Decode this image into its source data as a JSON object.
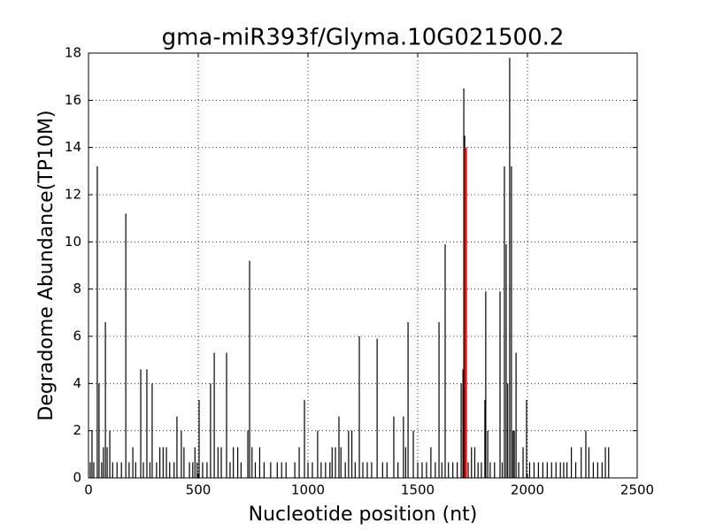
{
  "chart_data": {
    "type": "stem",
    "title": "gma-miR393f/Glyma.10G021500.2",
    "x_label": "Nucleotide position (nt)",
    "y_label": "Degradome Abundance(TP10M)",
    "xlim": [
      0,
      2500
    ],
    "xticks": [
      0,
      500,
      1000,
      1500,
      2000,
      2500
    ],
    "ylim": [
      0,
      18
    ],
    "yticks": [
      0,
      2,
      4,
      6,
      8,
      10,
      12,
      14,
      16,
      18
    ],
    "grid": true,
    "color": "#000000",
    "x": [
      8,
      16,
      24,
      40,
      48,
      60,
      68,
      77,
      85,
      97,
      110,
      130,
      150,
      170,
      185,
      202,
      215,
      238,
      250,
      266,
      280,
      290,
      310,
      325,
      340,
      355,
      370,
      390,
      403,
      423,
      435,
      460,
      475,
      485,
      495,
      504,
      520,
      540,
      556,
      573,
      590,
      605,
      629,
      645,
      660,
      680,
      695,
      726,
      734,
      745,
      760,
      780,
      800,
      830,
      860,
      880,
      900,
      940,
      960,
      984,
      1000,
      1020,
      1044,
      1060,
      1080,
      1100,
      1110,
      1125,
      1141,
      1150,
      1170,
      1185,
      1200,
      1215,
      1234,
      1250,
      1270,
      1290,
      1315,
      1340,
      1360,
      1391,
      1410,
      1435,
      1445,
      1456,
      1480,
      1500,
      1520,
      1540,
      1560,
      1580,
      1597,
      1610,
      1625,
      1640,
      1660,
      1680,
      1698,
      1706,
      1710,
      1714,
      1730,
      1745,
      1760,
      1775,
      1790,
      1806,
      1810,
      1819,
      1830,
      1850,
      1875,
      1885,
      1895,
      1903,
      1910,
      1919,
      1927,
      1934,
      1940,
      1948,
      1960,
      1980,
      1996,
      2010,
      2030,
      2050,
      2070,
      2090,
      2110,
      2130,
      2150,
      2165,
      2180,
      2200,
      2220,
      2245,
      2266,
      2280,
      2300,
      2320,
      2340,
      2355,
      2370
    ],
    "values": [
      0.66,
      2.0,
      0.66,
      13.2,
      4.0,
      0.66,
      1.3,
      6.6,
      1.3,
      2.0,
      0.66,
      0.66,
      0.66,
      11.2,
      0.66,
      1.3,
      0.66,
      4.6,
      0.66,
      4.6,
      0.66,
      4.0,
      0.66,
      1.3,
      1.3,
      1.3,
      0.66,
      0.66,
      2.6,
      2.0,
      1.3,
      0.66,
      0.66,
      1.3,
      0.66,
      3.3,
      0.66,
      0.66,
      4.0,
      5.3,
      1.3,
      1.3,
      5.3,
      0.66,
      1.3,
      1.3,
      0.66,
      2.0,
      9.2,
      1.3,
      0.66,
      1.3,
      0.66,
      0.66,
      0.66,
      0.66,
      0.66,
      0.66,
      1.3,
      3.3,
      0.66,
      0.66,
      2.0,
      0.66,
      0.66,
      0.66,
      1.3,
      1.3,
      2.6,
      1.3,
      0.66,
      2.0,
      2.0,
      0.66,
      6.0,
      0.66,
      0.66,
      0.66,
      5.9,
      0.66,
      0.66,
      2.6,
      0.66,
      2.6,
      1.3,
      6.6,
      2.0,
      0.66,
      0.66,
      0.66,
      1.3,
      0.66,
      6.6,
      0.66,
      9.9,
      0.66,
      0.66,
      0.66,
      4.0,
      4.6,
      16.5,
      14.5,
      0.66,
      1.3,
      1.3,
      0.66,
      0.66,
      3.3,
      7.9,
      2.0,
      0.66,
      0.66,
      7.9,
      0.66,
      13.2,
      9.9,
      4.0,
      17.8,
      13.2,
      2.0,
      2.0,
      5.3,
      0.66,
      1.3,
      3.3,
      0.66,
      0.66,
      0.66,
      0.66,
      0.66,
      0.66,
      0.66,
      0.66,
      0.66,
      0.66,
      1.3,
      0.66,
      1.3,
      2.0,
      1.3,
      0.66,
      0.66,
      0.66,
      1.3,
      1.3
    ],
    "highlight": {
      "x": 1718,
      "value": 14.0,
      "color": "#ff0000"
    }
  }
}
